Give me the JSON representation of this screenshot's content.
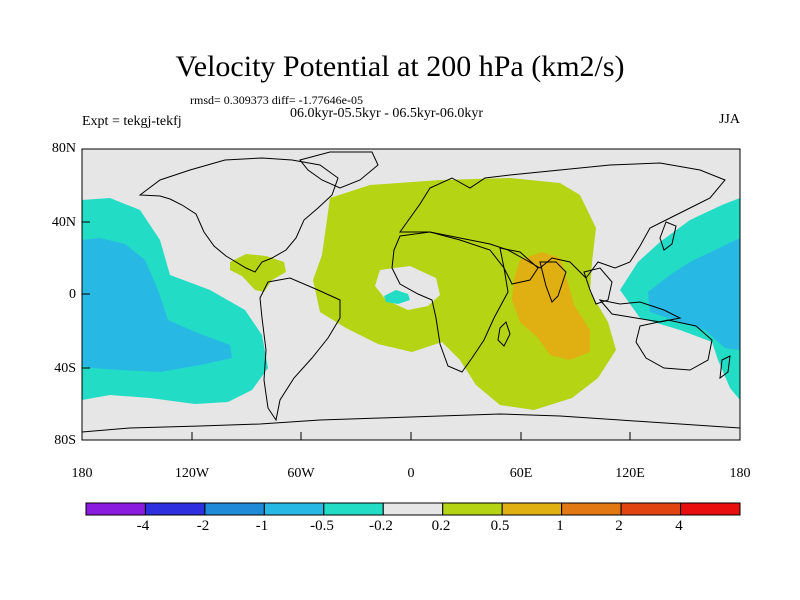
{
  "title": "Velocity Potential at 200 hPa (km2/s)",
  "stats": "rmsd= 0.309373 diff= -1.77646e-05",
  "period": "06.0kyr-05.5kyr - 06.5kyr-06.0kyr",
  "experiment": "Expt = tekgj-tekfj",
  "season": "JJA",
  "axes": {
    "y_ticks": [
      "80N",
      "40N",
      "0",
      "40S",
      "80S"
    ],
    "x_ticks": [
      "180",
      "120W",
      "60W",
      "0",
      "60E",
      "120E",
      "180"
    ]
  },
  "colorbar": {
    "labels": [
      "-4",
      "-2",
      "-1",
      "-0.5",
      "-0.2",
      "0.2",
      "0.5",
      "1",
      "2",
      "4"
    ],
    "colors": [
      "#8a1ce0",
      "#2e30e0",
      "#1e8ad8",
      "#27b8e4",
      "#22dcc6",
      "#e6e6e6",
      "#b4d414",
      "#e0b012",
      "#e27812",
      "#e24410",
      "#e80e0e"
    ]
  },
  "colors": {
    "land_bg": "#e6e6e6",
    "neg_02_05": "#22dcc6",
    "neg_05_1": "#27b8e4",
    "pos_02_05": "#b4d414",
    "pos_05_1": "#e0b012"
  }
}
